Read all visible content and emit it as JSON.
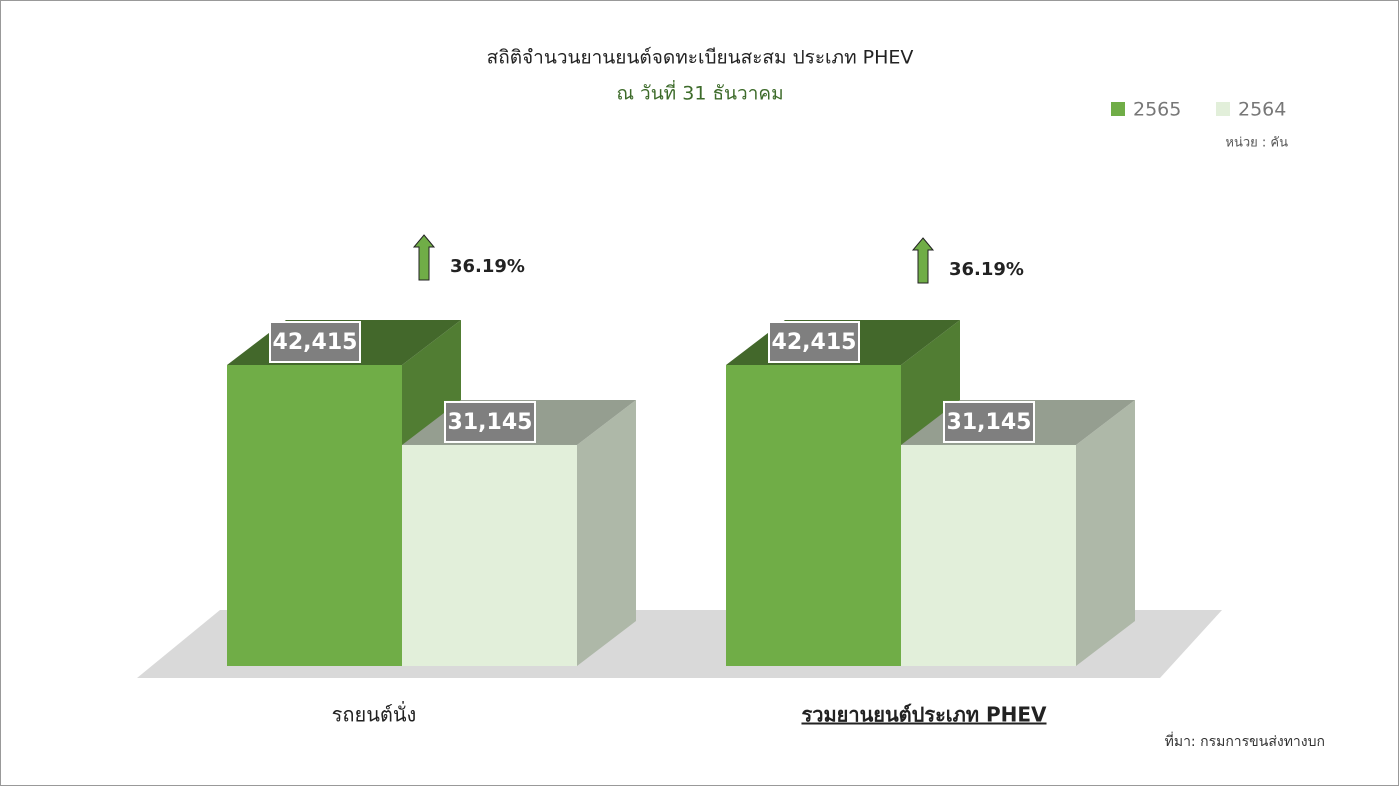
{
  "chart_data": {
    "type": "bar3d",
    "title": "สถิติจำนวนยานยนต์จดทะเบียนสะสม ประเภท PHEV",
    "subtitle": "ณ วันที่ 31 ธันวาคม",
    "unit": "หน่วย : คัน",
    "source": "ที่มา: กรมการขนส่งทางบก",
    "categories": [
      "รถยนต์นั่ง",
      "รวมยานยนต์ประเภท PHEV"
    ],
    "annotations": [
      "36.19%",
      "36.19%"
    ],
    "series": [
      {
        "name": "2565",
        "color": "#70ad47",
        "values": [
          42415,
          42415
        ],
        "value_labels": [
          "42,415",
          "42,415"
        ]
      },
      {
        "name": "2564",
        "color": "#e2efda",
        "values": [
          31145,
          31145
        ],
        "value_labels": [
          "31,145",
          "31,145"
        ]
      }
    ],
    "legend": "top-right"
  }
}
